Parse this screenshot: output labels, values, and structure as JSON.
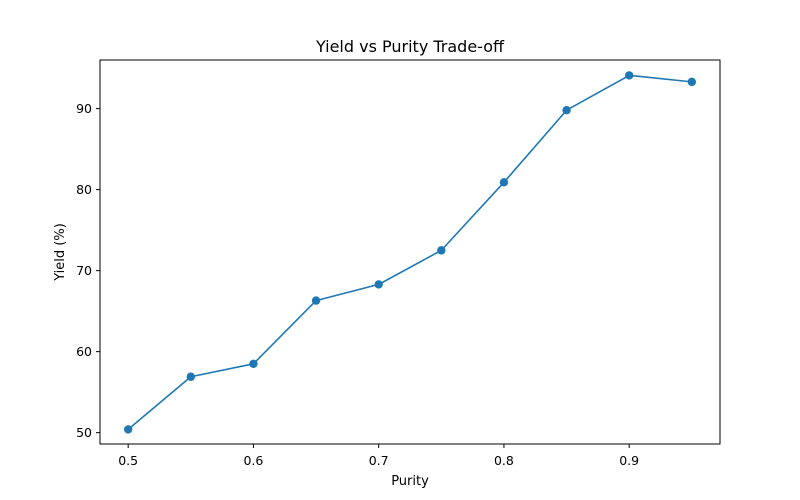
{
  "chart_data": {
    "type": "line",
    "title": "Yield vs Purity Trade-off",
    "xlabel": "Purity",
    "ylabel": "Yield (%)",
    "x": [
      0.5,
      0.55,
      0.6,
      0.65,
      0.7,
      0.75,
      0.8,
      0.85,
      0.9,
      0.95
    ],
    "series": [
      {
        "values": [
          50.4,
          56.9,
          58.5,
          66.3,
          68.3,
          72.5,
          80.9,
          89.8,
          94.1,
          93.3
        ],
        "color": "#1f77b4",
        "marker": "circle"
      }
    ],
    "xlim": [
      0.4775,
      0.9725
    ],
    "ylim": [
      48.6,
      96.0
    ],
    "xticks": [
      "0.5",
      "0.6",
      "0.7",
      "0.8",
      "0.9"
    ],
    "yticks": [
      "50",
      "60",
      "70",
      "80",
      "90"
    ],
    "grid": false,
    "legend": "none"
  }
}
